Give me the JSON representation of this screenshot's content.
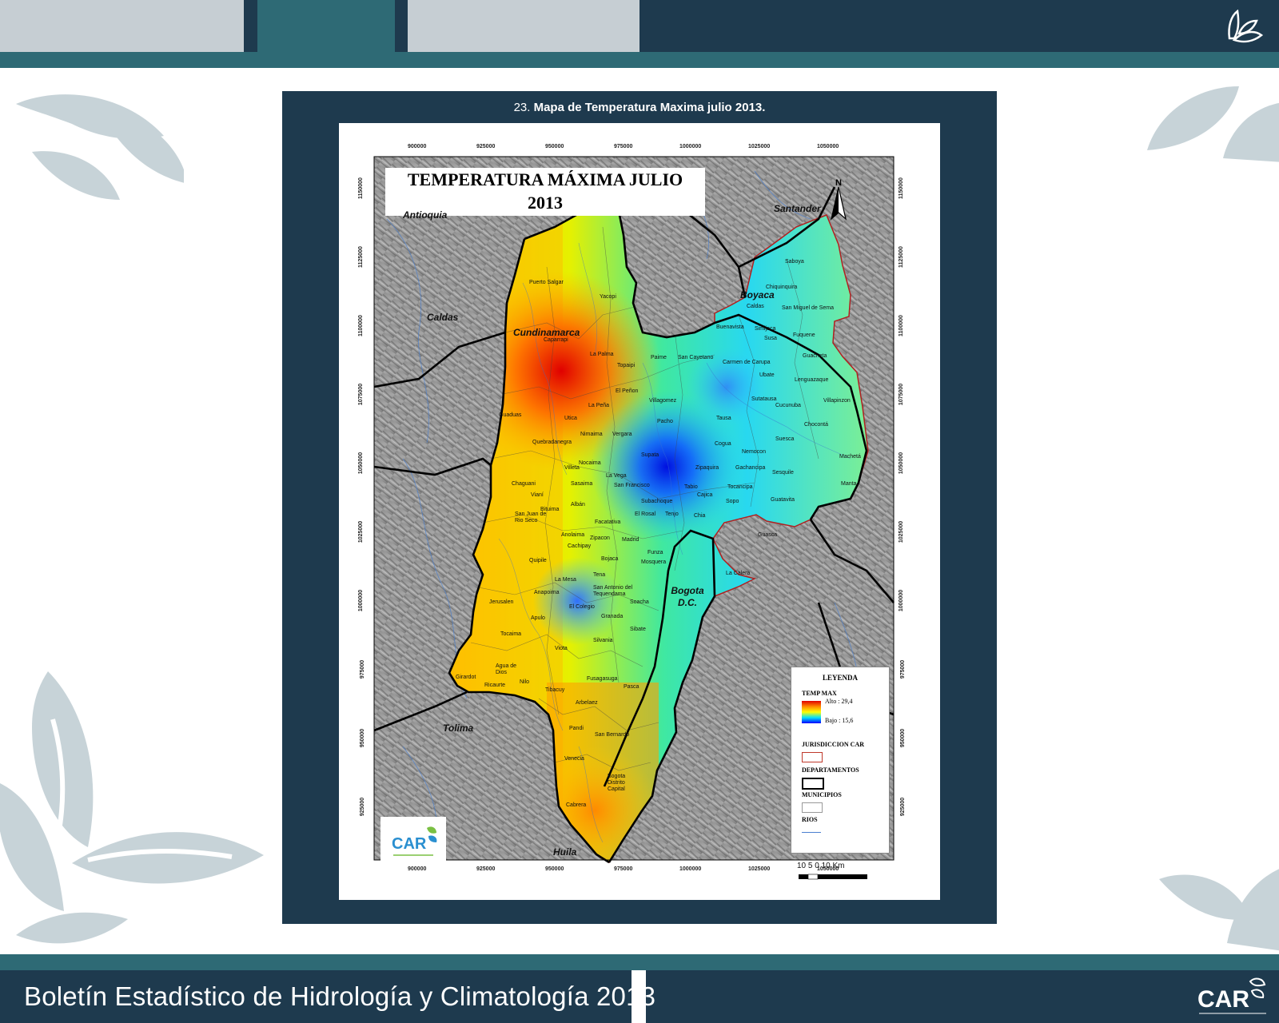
{
  "caption": {
    "number": "23",
    "text": "Mapa de Temperatura Maxima julio 2013."
  },
  "footer": {
    "title": "Boletín Estadístico de Hidrología y Climatología 2013",
    "logo": "CAR"
  },
  "map": {
    "title_line1": "TEMPERATURA MÁXIMA JULIO",
    "title_line2": "2013",
    "x_ticks": [
      "900000",
      "925000",
      "950000",
      "975000",
      "1000000",
      "1025000",
      "1050000"
    ],
    "y_ticks": [
      "1150000",
      "1125000",
      "1100000",
      "1075000",
      "1050000",
      "1025000",
      "1000000",
      "975000",
      "950000",
      "925000"
    ],
    "departments": [
      {
        "name": "Cundinamarca"
      },
      {
        "name": "Boyaca"
      },
      {
        "name": "Santander"
      },
      {
        "name": "Caldas"
      },
      {
        "name": "Tolima"
      },
      {
        "name": "Antioquia"
      },
      {
        "name": "Huila"
      },
      {
        "name": "Bogota D.C."
      }
    ],
    "places": [
      "Puerto Salgar",
      "Yacopi",
      "Caparrapi",
      "La Palma",
      "Topaipi",
      "El Peñon",
      "La Peña",
      "Guaduas",
      "Utica",
      "Nimaima",
      "Vergara",
      "Pacho",
      "Quebradanegra",
      "Villeta",
      "Nocaima",
      "Supata",
      "Zipaquira",
      "Chaguani",
      "Sasaima",
      "La Vega",
      "San Francisco",
      "Tabio",
      "Cajica",
      "Vianí",
      "Albán",
      "Subachoque",
      "Tenjo",
      "Chia",
      "Bituima",
      "Facatativa",
      "El Rosal",
      "San Juan de Rio Seco",
      "Anolaima",
      "Zipacon",
      "Cachipay",
      "Madrid",
      "Funza",
      "Quipile",
      "Bojaca",
      "Mosquera",
      "La Mesa",
      "Tena",
      "Anapoima",
      "San Antonio del Tequendama",
      "Soacha",
      "Jerusalen",
      "Apulo",
      "El Colegio",
      "Granada",
      "Sibate",
      "Tocaima",
      "Viota",
      "Silvania",
      "Agua de Dios",
      "Nilo",
      "Ricaurte",
      "Girardot",
      "Tibacuy",
      "Fusagasuga",
      "Pasca",
      "Arbelaez",
      "Pandi",
      "San Bernardo",
      "Venecia",
      "Cabrera",
      "Bogota Distrito Capital",
      "Villagomez",
      "Paime",
      "San Cayetano",
      "Carmen de Carupa",
      "Ubate",
      "Tausa",
      "Sutatausa",
      "Cucunuba",
      "Cogua",
      "Nemocon",
      "Suesca",
      "Gachancipa",
      "Sesquile",
      "Tocancipa",
      "Sopo",
      "Guatavita",
      "Chocontá",
      "Machetá",
      "Manta",
      "Villapinzon",
      "Lenguazaque",
      "Guacheta",
      "Fuquene",
      "Susa",
      "Simijaca",
      "Buenavista",
      "Caldas",
      "Chiquinquira",
      "Saboya",
      "San Miguel de Sema",
      "Guasca",
      "La Calera"
    ]
  },
  "legend": {
    "title": "LEYENDA",
    "temp_title": "TEMP MAX",
    "high": "Alto : 29,4",
    "low": "Bajo : 15,6",
    "jurisdiction": "JURISDICCION CAR",
    "departments": "DEPARTAMENTOS",
    "municipalities": "MUNICIPIOS",
    "rivers": "RIOS",
    "colors": {
      "high": "#e00000",
      "mid": "#ffff00",
      "low": "#0000ff",
      "jurisdiction": "#c0392b",
      "rivers": "#4a7fd0"
    }
  },
  "scale_bar": {
    "label": "10 5 0 10 Km"
  },
  "north_arrow": {
    "label": "N"
  },
  "icons": [
    "butterfly-leaf-icon",
    "north-arrow-icon",
    "car-logo-icon"
  ],
  "colors": {
    "navy": "#1e3a4e",
    "teal": "#2e6a75",
    "gray": "#c6ced3",
    "leaf": "#c7d3d8"
  }
}
